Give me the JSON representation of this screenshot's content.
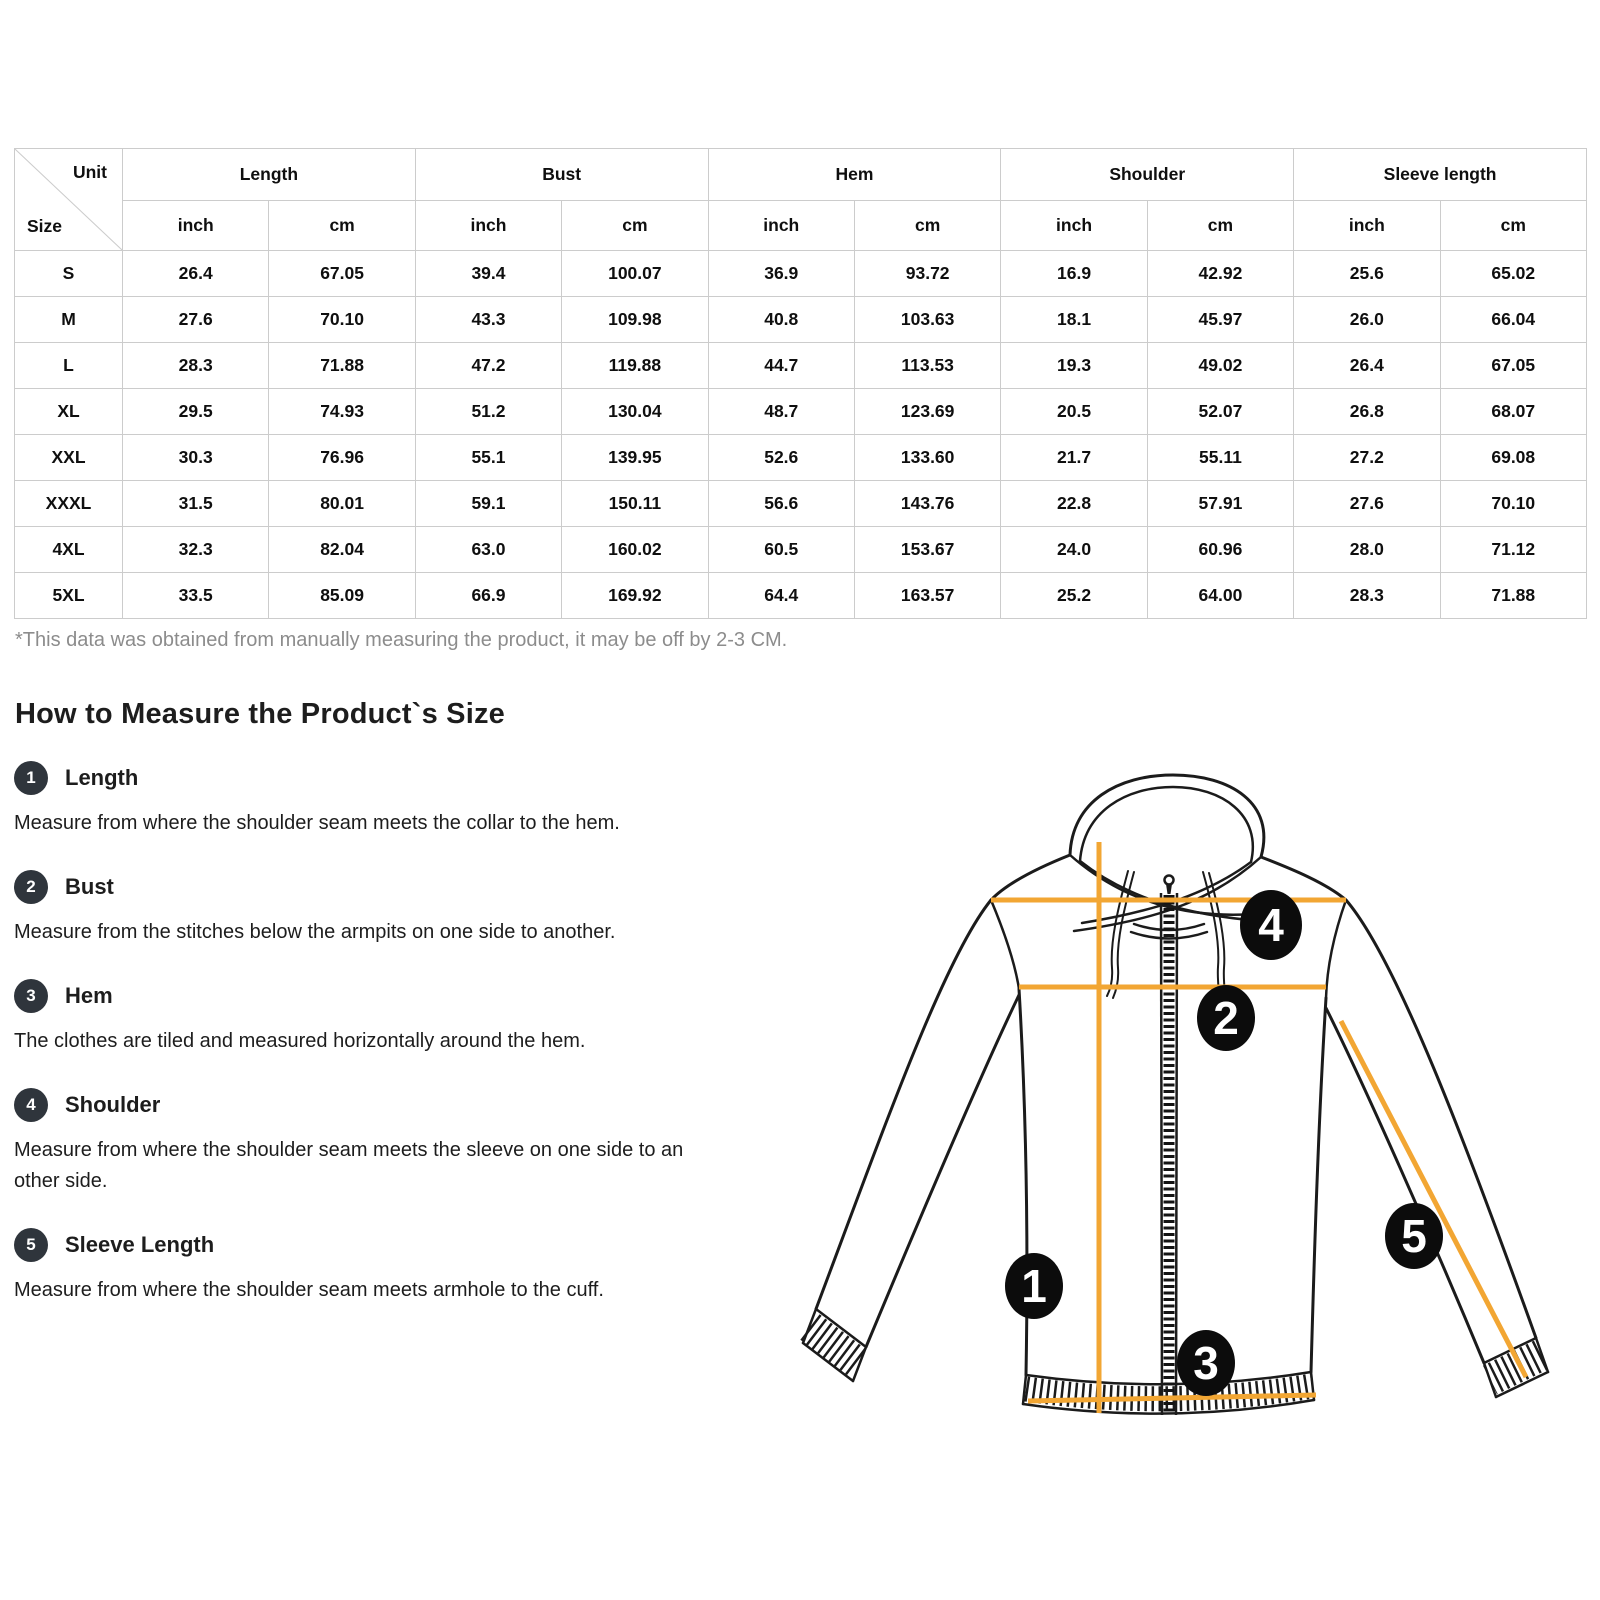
{
  "table": {
    "corner_top": "Unit",
    "corner_bottom": "Size",
    "column_groups": [
      "Length",
      "Bust",
      "Hem",
      "Shoulder",
      "Sleeve length"
    ],
    "sub_headers": [
      "inch",
      "cm",
      "inch",
      "cm",
      "inch",
      "cm",
      "inch",
      "cm",
      "inch",
      "cm"
    ],
    "rows": [
      {
        "size": "S",
        "values": [
          "26.4",
          "67.05",
          "39.4",
          "100.07",
          "36.9",
          "93.72",
          "16.9",
          "42.92",
          "25.6",
          "65.02"
        ]
      },
      {
        "size": "M",
        "values": [
          "27.6",
          "70.10",
          "43.3",
          "109.98",
          "40.8",
          "103.63",
          "18.1",
          "45.97",
          "26.0",
          "66.04"
        ]
      },
      {
        "size": "L",
        "values": [
          "28.3",
          "71.88",
          "47.2",
          "119.88",
          "44.7",
          "113.53",
          "19.3",
          "49.02",
          "26.4",
          "67.05"
        ]
      },
      {
        "size": "XL",
        "values": [
          "29.5",
          "74.93",
          "51.2",
          "130.04",
          "48.7",
          "123.69",
          "20.5",
          "52.07",
          "26.8",
          "68.07"
        ]
      },
      {
        "size": "XXL",
        "values": [
          "30.3",
          "76.96",
          "55.1",
          "139.95",
          "52.6",
          "133.60",
          "21.7",
          "55.11",
          "27.2",
          "69.08"
        ]
      },
      {
        "size": "XXXL",
        "values": [
          "31.5",
          "80.01",
          "59.1",
          "150.11",
          "56.6",
          "143.76",
          "22.8",
          "57.91",
          "27.6",
          "70.10"
        ]
      },
      {
        "size": "4XL",
        "values": [
          "32.3",
          "82.04",
          "63.0",
          "160.02",
          "60.5",
          "153.67",
          "24.0",
          "60.96",
          "28.0",
          "71.12"
        ]
      },
      {
        "size": "5XL",
        "values": [
          "33.5",
          "85.09",
          "66.9",
          "169.92",
          "64.4",
          "163.57",
          "25.2",
          "64.00",
          "28.3",
          "71.88"
        ]
      }
    ],
    "note": "*This data was obtained from manually measuring the product, it may be off by 2-3 CM."
  },
  "section": {
    "heading": "How to Measure the Product`s Size",
    "items": [
      {
        "num": "1",
        "label": "Length",
        "desc": "Measure from where the shoulder seam meets the collar to the hem."
      },
      {
        "num": "2",
        "label": "Bust",
        "desc": "Measure from the stitches below the armpits on one side to another."
      },
      {
        "num": "3",
        "label": "Hem",
        "desc": "The clothes are tiled and measured horizontally around the hem."
      },
      {
        "num": "4",
        "label": "Shoulder",
        "desc": "Measure from where the shoulder seam meets the sleeve on one side to another side."
      },
      {
        "num": "5",
        "label": "Sleeve Length",
        "desc": "Measure from where the shoulder seam meets armhole to the cuff."
      }
    ]
  },
  "diagram": {
    "markers": [
      "1",
      "2",
      "3",
      "4",
      "5"
    ]
  },
  "colors": {
    "accent_line": "#F2A633",
    "list_badge": "#2F353C",
    "figure_marker": "#0C0C0C",
    "table_border": "#CCCCCC",
    "note_text": "#8C8C8C"
  }
}
